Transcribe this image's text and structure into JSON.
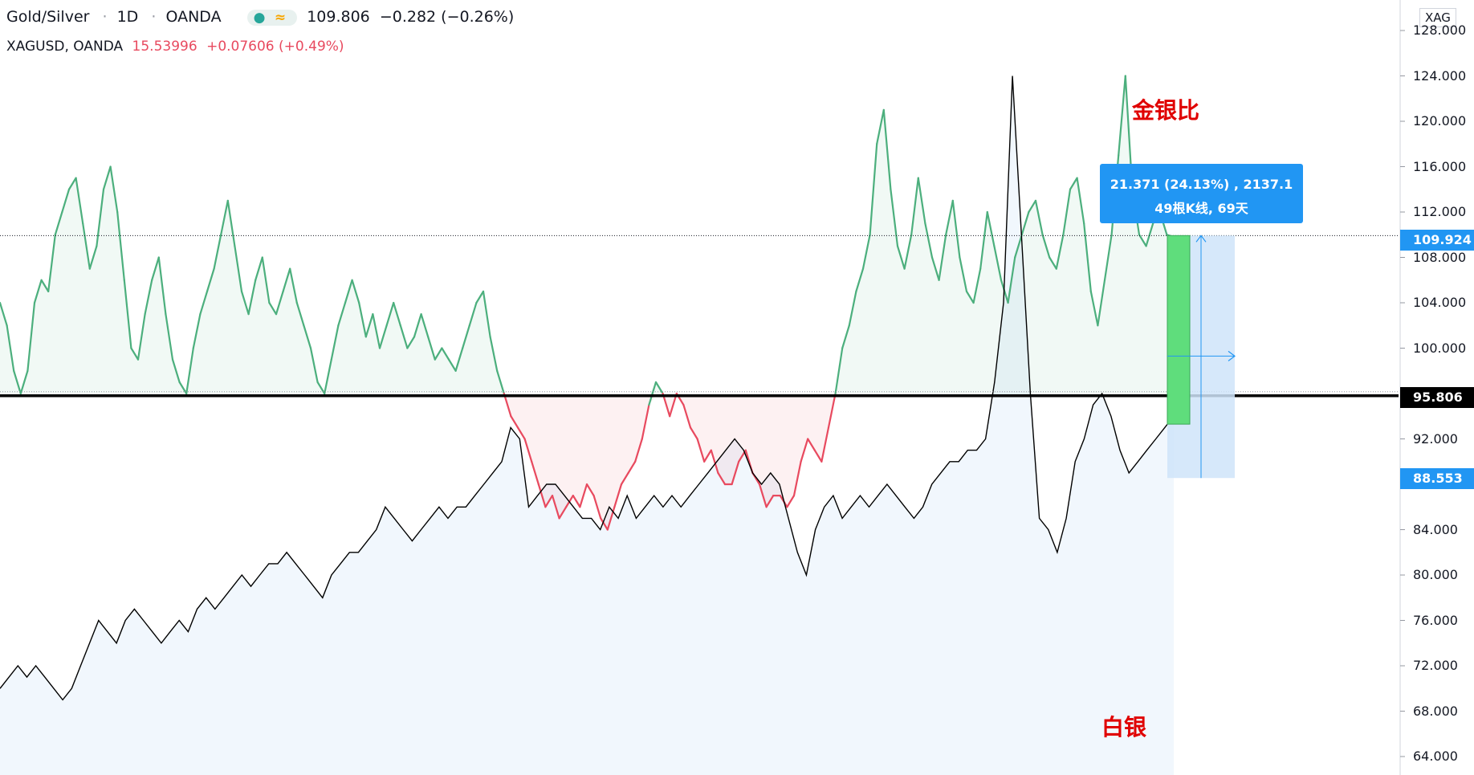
{
  "header": {
    "symbol": "Gold/Silver",
    "interval": "1D",
    "broker": "OANDA",
    "sep": "·",
    "dot_icon": "●",
    "wave_icon": "≈",
    "last": "109.806",
    "change": "−0.282 (−0.26%)"
  },
  "overlay": {
    "label": "XAGUSD, OANDA",
    "price": "15.53996",
    "change": "+0.07606 (+0.49%)"
  },
  "axis": {
    "symbol_box": "XAG",
    "ticks": [
      "128.000",
      "124.000",
      "120.000",
      "116.000",
      "112.000",
      "108.000",
      "104.000",
      "100.000",
      "96.000",
      "92.000",
      "88.000",
      "84.000",
      "80.000",
      "76.000",
      "72.000",
      "68.000",
      "64.000"
    ]
  },
  "price_tags": {
    "current": "109.924",
    "level": "95.806",
    "entry": "88.553"
  },
  "measure": {
    "line1": "21.371 (24.13%) , 2137.1",
    "line2": "49根K线, 69天"
  },
  "annotations": {
    "ratio_label": "金银比",
    "silver_label": "白银"
  },
  "colors": {
    "above": "#4caf7d",
    "below": "#e84a5f",
    "silver": "#000000",
    "accent": "#2196f3",
    "measure_bar": "#5fdd7c"
  },
  "chart_data": {
    "type": "line",
    "ylim": [
      62,
      130
    ],
    "baseline": 95.806,
    "series": [
      {
        "name": "Gold/Silver",
        "values": [
          104,
          102,
          98,
          96,
          98,
          104,
          106,
          105,
          110,
          112,
          114,
          115,
          111,
          107,
          109,
          114,
          116,
          112,
          106,
          100,
          99,
          103,
          106,
          108,
          103,
          99,
          97,
          96,
          100,
          103,
          105,
          107,
          110,
          113,
          109,
          105,
          103,
          106,
          108,
          104,
          103,
          105,
          107,
          104,
          102,
          100,
          97,
          96,
          99,
          102,
          104,
          106,
          104,
          101,
          103,
          100,
          102,
          104,
          102,
          100,
          101,
          103,
          101,
          99,
          100,
          99,
          98,
          100,
          102,
          104,
          105,
          101,
          98,
          96,
          94,
          93,
          92,
          90,
          88,
          86,
          87,
          85,
          86,
          87,
          86,
          88,
          87,
          85,
          84,
          86,
          88,
          89,
          90,
          92,
          95,
          97,
          96,
          94,
          96,
          95,
          93,
          92,
          90,
          91,
          89,
          88,
          88,
          90,
          91,
          89,
          88,
          86,
          87,
          87,
          86,
          87,
          90,
          92,
          91,
          90,
          93,
          96,
          100,
          102,
          105,
          107,
          110,
          118,
          121,
          114,
          109,
          107,
          110,
          115,
          111,
          108,
          106,
          110,
          113,
          108,
          105,
          104,
          107,
          112,
          109,
          106,
          104,
          108,
          110,
          112,
          113,
          110,
          108,
          107,
          110,
          114,
          115,
          111,
          105,
          102,
          106,
          110,
          117,
          124,
          114,
          110,
          109,
          111,
          112,
          110,
          109.806
        ]
      },
      {
        "name": "XAGUSD",
        "values": [
          70,
          71,
          72,
          71,
          72,
          71,
          70,
          69,
          70,
          72,
          74,
          76,
          75,
          74,
          76,
          77,
          76,
          75,
          74,
          75,
          76,
          75,
          77,
          78,
          77,
          78,
          79,
          80,
          79,
          80,
          81,
          81,
          82,
          81,
          80,
          79,
          78,
          80,
          81,
          82,
          82,
          83,
          84,
          86,
          85,
          84,
          83,
          84,
          85,
          86,
          85,
          86,
          86,
          87,
          88,
          89,
          90,
          93,
          92,
          86,
          87,
          88,
          88,
          87,
          86,
          85,
          85,
          84,
          86,
          85,
          87,
          85,
          86,
          87,
          86,
          87,
          86,
          87,
          88,
          89,
          90,
          91,
          92,
          91,
          89,
          88,
          89,
          88,
          85,
          82,
          80,
          84,
          86,
          87,
          85,
          86,
          87,
          86,
          87,
          88,
          87,
          86,
          85,
          86,
          88,
          89,
          90,
          90,
          91,
          91,
          92,
          97,
          104,
          124,
          110,
          96,
          85,
          84,
          82,
          85,
          90,
          92,
          95,
          96,
          94,
          91,
          89,
          90,
          91,
          92,
          93,
          94
        ]
      }
    ]
  }
}
